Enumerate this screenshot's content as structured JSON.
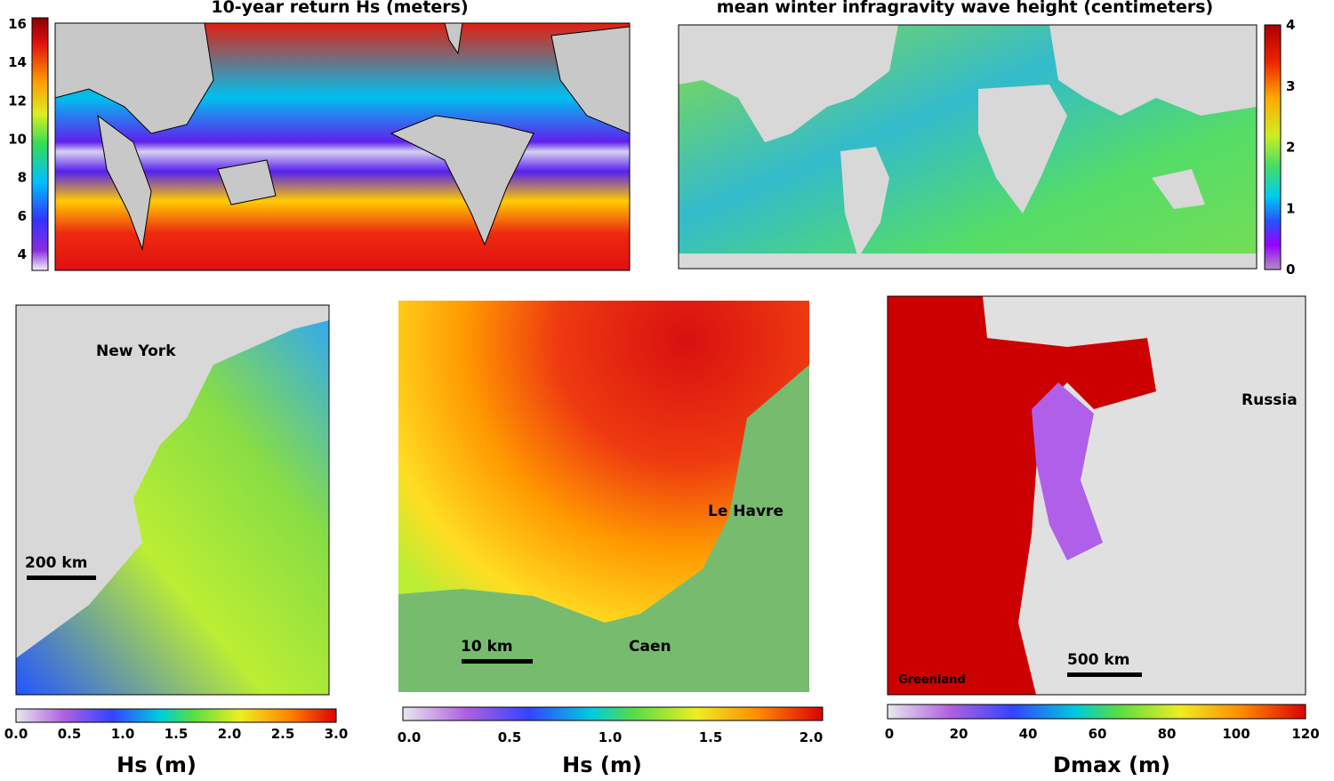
{
  "panels": [
    {
      "title": "10-year return Hs (meters)",
      "colorbar": {
        "ticks": [
          "4",
          "6",
          "8",
          "10",
          "12",
          "14",
          "16"
        ]
      }
    },
    {
      "title": "mean winter infragravity wave height (centimeters)",
      "colorbar": {
        "ticks": [
          "0",
          "1",
          "2",
          "3",
          "4"
        ]
      }
    },
    {
      "labels": [
        "New York",
        "200 km"
      ],
      "colorbar": {
        "ticks": [
          "0.0",
          "0.5",
          "1.0",
          "1.5",
          "2.0",
          "2.5",
          "3.0"
        ],
        "label": "Hs (m)"
      }
    },
    {
      "labels": [
        "Le Havre",
        "10 km",
        "Caen"
      ],
      "colorbar": {
        "ticks": [
          "0.0",
          "0.5",
          "1.0",
          "1.5",
          "2.0"
        ],
        "label": "Hs (m)"
      }
    },
    {
      "labels": [
        "Russia",
        "Greenland",
        "500 km"
      ],
      "colorbar": {
        "ticks": [
          "0",
          "20",
          "40",
          "60",
          "80",
          "100",
          "120"
        ],
        "label": "Dmax (m)"
      }
    }
  ]
}
